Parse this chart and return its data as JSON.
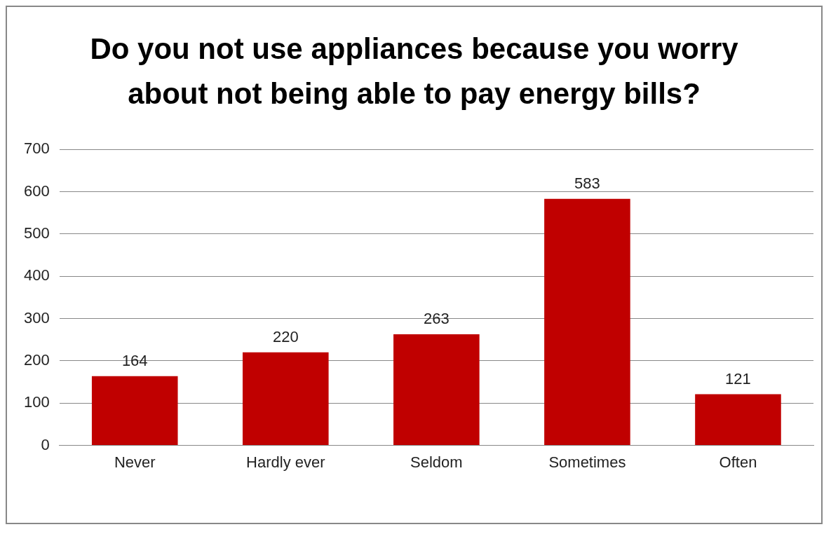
{
  "chart_data": {
    "type": "bar",
    "title": "Do you not use appliances because you worry about not being able to pay energy bills?",
    "categories": [
      "Never",
      "Hardly ever",
      "Seldom",
      "Sometimes",
      "Often"
    ],
    "values": [
      164,
      220,
      263,
      583,
      121
    ],
    "color": "#c00000",
    "ylim": [
      0,
      700
    ],
    "yticks": [
      0,
      100,
      200,
      300,
      400,
      500,
      600,
      700
    ],
    "grid": "y",
    "data_labels": true,
    "legend": false
  }
}
